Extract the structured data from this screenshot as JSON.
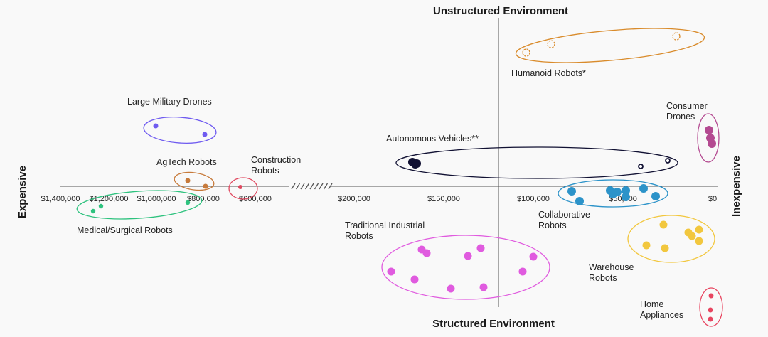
{
  "chart_data": {
    "type": "scatter",
    "axis_titles": {
      "top": "Unstructured Environment",
      "bottom": "Structured Environment",
      "left": "Expensive",
      "right": "Inexpensive"
    },
    "x_ticks": [
      "$1,400,000",
      "$1,200,000",
      "$1,000,000",
      "$800,000",
      "$600,000",
      "$200,000",
      "$150,000",
      "$100,000",
      "$50,000",
      "$0"
    ],
    "x_axis_break": true,
    "groups": [
      {
        "id": "humanoid",
        "lines": [
          "Humanoid Robots*"
        ],
        "color": "#d98b2b",
        "hollow": true,
        "points": [
          [
            740,
            74
          ],
          [
            775,
            62
          ],
          [
            951,
            51
          ]
        ]
      },
      {
        "id": "military-drones",
        "lines": [
          "Large Military Drones"
        ],
        "color": "#6f5bf0",
        "points": [
          [
            219,
            177
          ],
          [
            288,
            189
          ]
        ]
      },
      {
        "id": "consumer-drones",
        "lines": [
          "Consumer",
          "Drones"
        ],
        "color": "#b44a91",
        "points": [
          [
            997,
            183
          ],
          [
            999,
            194
          ],
          [
            1001,
            202
          ]
        ]
      },
      {
        "id": "autonomous-vehicles",
        "lines": [
          "Autonomous Vehicles**"
        ],
        "color": "#111133",
        "points": [
          [
            580,
            228
          ],
          [
            584,
            231
          ],
          [
            586,
            230
          ],
          [
            901,
            234
          ],
          [
            939,
            226
          ]
        ]
      },
      {
        "id": "agtech",
        "lines": [
          "AgTech Robots"
        ],
        "color": "#c77a3a",
        "points": [
          [
            264,
            254
          ],
          [
            289,
            262
          ]
        ]
      },
      {
        "id": "construction",
        "lines": [
          "Construction",
          "Robots"
        ],
        "color": "#e0485f",
        "points": [
          [
            338,
            263
          ]
        ]
      },
      {
        "id": "medical-surgical",
        "lines": [
          "Medical/Surgical Robots"
        ],
        "color": "#2ec27e",
        "points": [
          [
            142,
            290
          ],
          [
            131,
            297
          ],
          [
            264,
            285
          ]
        ]
      },
      {
        "id": "collaborative",
        "lines": [
          "Collaborative",
          "Robots"
        ],
        "color": "#2c93c9",
        "points": [
          [
            804,
            269
          ],
          [
            815,
            283
          ],
          [
            858,
            268
          ],
          [
            862,
            273
          ],
          [
            868,
            270
          ],
          [
            880,
            268
          ],
          [
            880,
            277
          ],
          [
            905,
            265
          ],
          [
            922,
            276
          ]
        ]
      },
      {
        "id": "traditional-industrial",
        "lines": [
          "Traditional Industrial",
          "Robots"
        ],
        "color": "#e05bdf",
        "points": [
          [
            593,
            351
          ],
          [
            600,
            356
          ],
          [
            550,
            382
          ],
          [
            583,
            393
          ],
          [
            634,
            406
          ],
          [
            658,
            360
          ],
          [
            676,
            349
          ],
          [
            680,
            404
          ],
          [
            735,
            382
          ],
          [
            750,
            361
          ]
        ]
      },
      {
        "id": "warehouse",
        "lines": [
          "Warehouse",
          "Robots"
        ],
        "color": "#f2c73e",
        "points": [
          [
            933,
            316
          ],
          [
            968,
            327
          ],
          [
            983,
            323
          ],
          [
            973,
            332
          ],
          [
            983,
            339
          ],
          [
            909,
            345
          ],
          [
            935,
            349
          ]
        ]
      },
      {
        "id": "home-appliances",
        "lines": [
          "Home",
          "Appliances"
        ],
        "color": "#e84560",
        "points": [
          [
            1000,
            416
          ],
          [
            999,
            436
          ],
          [
            999,
            449
          ]
        ]
      }
    ]
  }
}
